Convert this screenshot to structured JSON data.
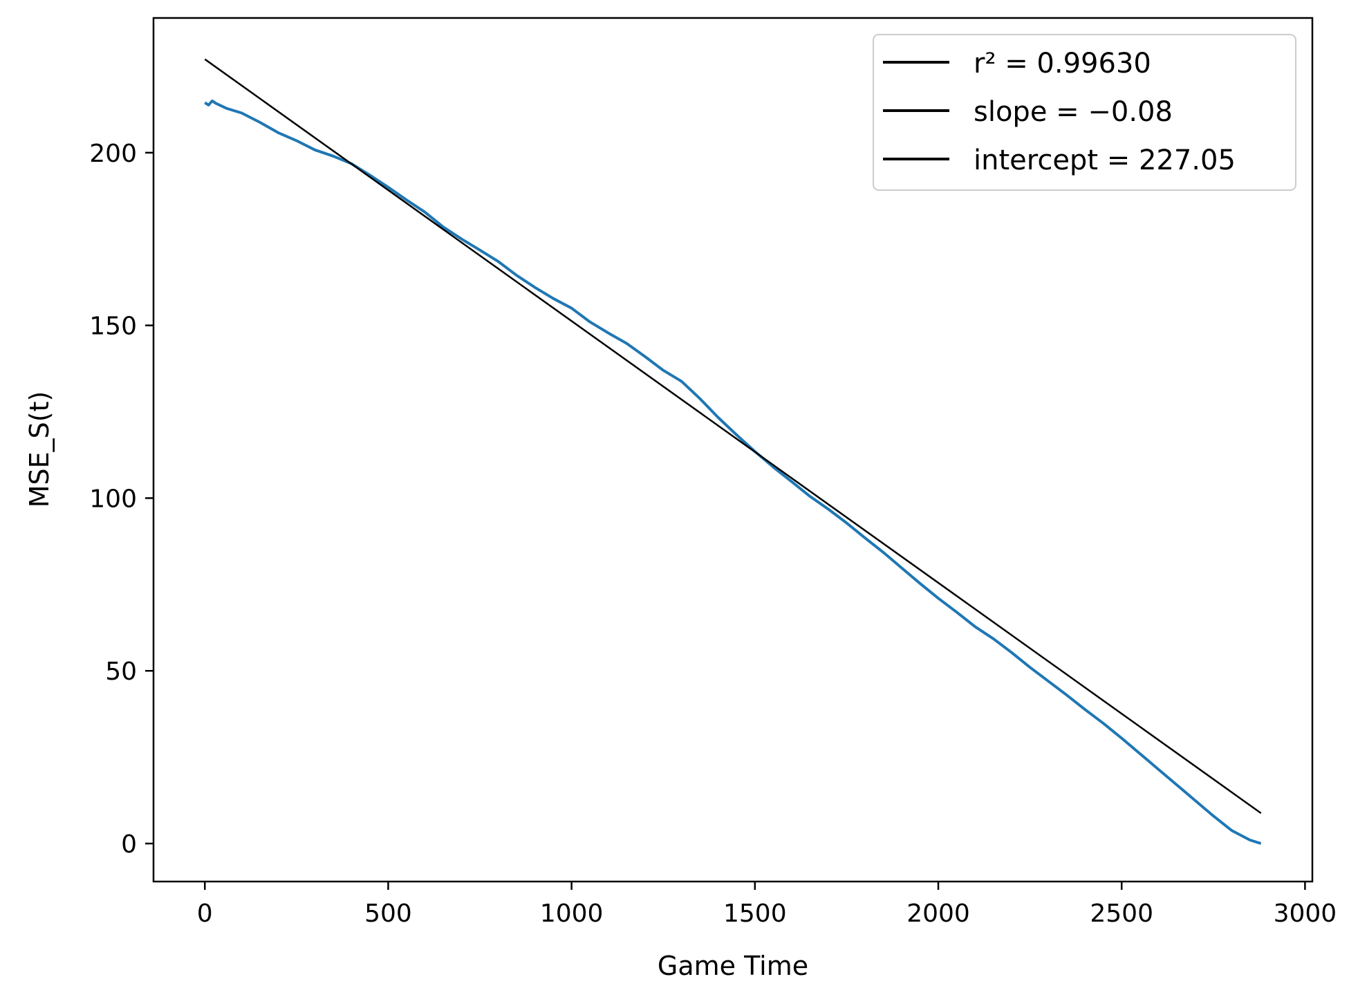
{
  "chart_data": {
    "type": "line",
    "title": "",
    "xlabel": "Game Time",
    "ylabel": "MSE_S(t)",
    "xlim": [
      -140,
      3020
    ],
    "ylim": [
      -11,
      239
    ],
    "xticks": [
      0,
      500,
      1000,
      1500,
      2000,
      2500,
      3000
    ],
    "yticks": [
      0,
      50,
      100,
      150,
      200
    ],
    "grid": false,
    "legend_position": "top-right",
    "legend": [
      {
        "label": "r² = 0.99630",
        "color": "#000000"
      },
      {
        "label": "slope = −0.08",
        "color": "#000000"
      },
      {
        "label": "intercept = 227.05",
        "color": "#000000"
      }
    ],
    "series": [
      {
        "color": "#1f77b4",
        "x": [
          0,
          10,
          20,
          30,
          40,
          60,
          100,
          150,
          200,
          250,
          300,
          350,
          400,
          450,
          500,
          550,
          600,
          650,
          700,
          750,
          800,
          850,
          900,
          950,
          1000,
          1050,
          1100,
          1150,
          1200,
          1250,
          1300,
          1350,
          1400,
          1450,
          1500,
          1550,
          1600,
          1650,
          1700,
          1750,
          1800,
          1850,
          1900,
          1950,
          2000,
          2050,
          2100,
          2150,
          2200,
          2250,
          2300,
          2350,
          2400,
          2450,
          2500,
          2550,
          2600,
          2650,
          2700,
          2750,
          2800,
          2850,
          2880
        ],
        "y": [
          214.5,
          213.8,
          215.0,
          214.3,
          213.8,
          212.8,
          211.5,
          208.8,
          205.8,
          203.5,
          200.8,
          199.0,
          196.8,
          193.5,
          190.0,
          186.3,
          182.8,
          178.5,
          175.0,
          171.8,
          168.5,
          164.5,
          161.0,
          157.8,
          155.0,
          151.0,
          147.8,
          144.8,
          141.0,
          137.0,
          133.8,
          128.8,
          123.3,
          118.3,
          113.5,
          109.0,
          104.8,
          100.5,
          96.8,
          92.8,
          88.5,
          84.3,
          79.8,
          75.3,
          71.0,
          67.0,
          62.8,
          59.3,
          55.3,
          51.0,
          47.0,
          43.0,
          38.8,
          34.8,
          30.5,
          26.0,
          21.5,
          17.0,
          12.5,
          8.0,
          3.8,
          1.0,
          0.0
        ]
      },
      {
        "color": "#000000",
        "x": [
          0,
          2880
        ],
        "y": [
          227.05,
          8.8
        ]
      }
    ]
  }
}
